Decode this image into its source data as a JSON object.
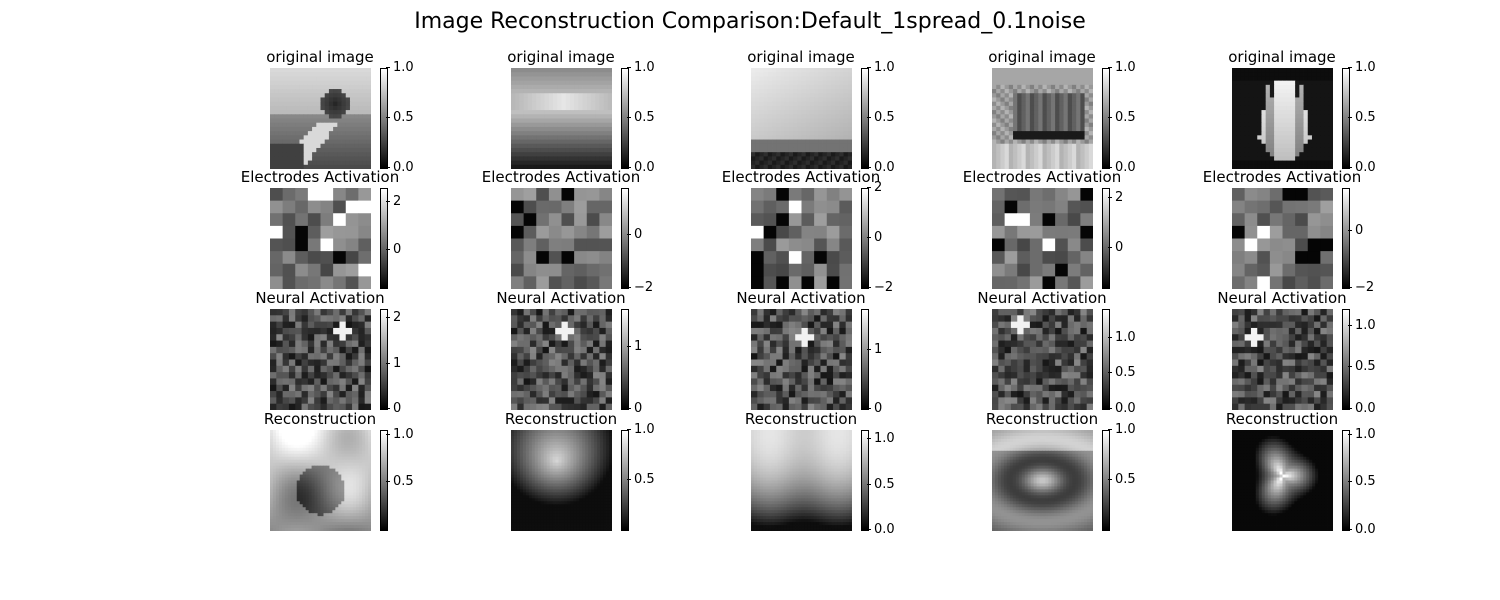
{
  "chart_data": {
    "type": "heatmap",
    "title": "Image Reconstruction Comparison:Default_1spread_0.1noise",
    "colormap": "gray",
    "row_titles": [
      "original image",
      "Electrodes Activation",
      "Neural Activation",
      "Reconstruction"
    ],
    "columns": [
      {
        "column": 1,
        "panels": [
          {
            "title": "original image",
            "content": "landscape with tree and path",
            "colorbar": {
              "min": 0.0,
              "max": 1.0,
              "ticks": [
                "0.0",
                "0.5",
                "1.0"
              ]
            }
          },
          {
            "title": "Electrodes Activation",
            "grid": [
              8,
              8
            ],
            "colorbar": {
              "min": -1.6,
              "max": 2.6,
              "ticks": [
                "0",
                "2"
              ]
            }
          },
          {
            "title": "Neural Activation",
            "grid": [
              16,
              16
            ],
            "colorbar": {
              "min": 0,
              "max": 2.2,
              "ticks": [
                "0",
                "1",
                "2"
              ]
            }
          },
          {
            "title": "Reconstruction",
            "colorbar": {
              "min": 0.0,
              "max": 1.05,
              "ticks": [
                "0.5",
                "1.0"
              ]
            }
          }
        ]
      },
      {
        "column": 2,
        "panels": [
          {
            "title": "original image",
            "content": "sunset over horizon",
            "colorbar": {
              "min": 0.0,
              "max": 1.0,
              "ticks": [
                "0.0",
                "0.5",
                "1.0"
              ]
            }
          },
          {
            "title": "Electrodes Activation",
            "grid": [
              8,
              8
            ],
            "colorbar": {
              "min": -2.0,
              "max": 1.8,
              "ticks": [
                "−2",
                "0"
              ]
            }
          },
          {
            "title": "Neural Activation",
            "grid": [
              16,
              16
            ],
            "colorbar": {
              "min": 0,
              "max": 1.6,
              "ticks": [
                "0",
                "1"
              ]
            }
          },
          {
            "title": "Reconstruction",
            "colorbar": {
              "min": 0.0,
              "max": 1.0,
              "ticks": [
                "0.5",
                "1.0"
              ]
            }
          }
        ]
      },
      {
        "column": 3,
        "panels": [
          {
            "title": "original image",
            "content": "bright sky over dark treeline",
            "colorbar": {
              "min": 0.0,
              "max": 1.0,
              "ticks": [
                "0.0",
                "0.5",
                "1.0"
              ]
            }
          },
          {
            "title": "Electrodes Activation",
            "grid": [
              8,
              8
            ],
            "colorbar": {
              "min": -2.0,
              "max": 2.0,
              "ticks": [
                "−2",
                "0",
                "2"
              ]
            }
          },
          {
            "title": "Neural Activation",
            "grid": [
              16,
              16
            ],
            "colorbar": {
              "min": 0,
              "max": 1.7,
              "ticks": [
                "0",
                "1"
              ]
            }
          },
          {
            "title": "Reconstruction",
            "colorbar": {
              "min": 0.0,
              "max": 1.1,
              "ticks": [
                "0.0",
                "0.5",
                "1.0"
              ]
            }
          }
        ]
      },
      {
        "column": 4,
        "panels": [
          {
            "title": "original image",
            "content": "train car in front of hills",
            "colorbar": {
              "min": 0.0,
              "max": 1.0,
              "ticks": [
                "0.0",
                "0.5",
                "1.0"
              ]
            }
          },
          {
            "title": "Electrodes Activation",
            "grid": [
              8,
              8
            ],
            "colorbar": {
              "min": -1.6,
              "max": 2.4,
              "ticks": [
                "0",
                "2"
              ]
            }
          },
          {
            "title": "Neural Activation",
            "grid": [
              16,
              16
            ],
            "colorbar": {
              "min": 0.0,
              "max": 1.4,
              "ticks": [
                "0.0",
                "0.5",
                "1.0"
              ]
            }
          },
          {
            "title": "Reconstruction",
            "colorbar": {
              "min": 0.0,
              "max": 1.0,
              "ticks": [
                "0.5",
                "1.0"
              ]
            }
          }
        ]
      },
      {
        "column": 5,
        "panels": [
          {
            "title": "original image",
            "content": "white tulip on black background",
            "colorbar": {
              "min": 0.0,
              "max": 1.0,
              "ticks": [
                "0.0",
                "0.5",
                "1.0"
              ]
            }
          },
          {
            "title": "Electrodes Activation",
            "grid": [
              8,
              8
            ],
            "colorbar": {
              "min": -2.0,
              "max": 1.5,
              "ticks": [
                "−2",
                "0"
              ]
            }
          },
          {
            "title": "Neural Activation",
            "grid": [
              16,
              16
            ],
            "colorbar": {
              "min": 0.0,
              "max": 1.2,
              "ticks": [
                "0.0",
                "0.5",
                "1.0"
              ]
            }
          },
          {
            "title": "Reconstruction",
            "colorbar": {
              "min": 0.0,
              "max": 1.05,
              "ticks": [
                "0.0",
                "0.5",
                "1.0"
              ]
            }
          }
        ]
      }
    ]
  }
}
